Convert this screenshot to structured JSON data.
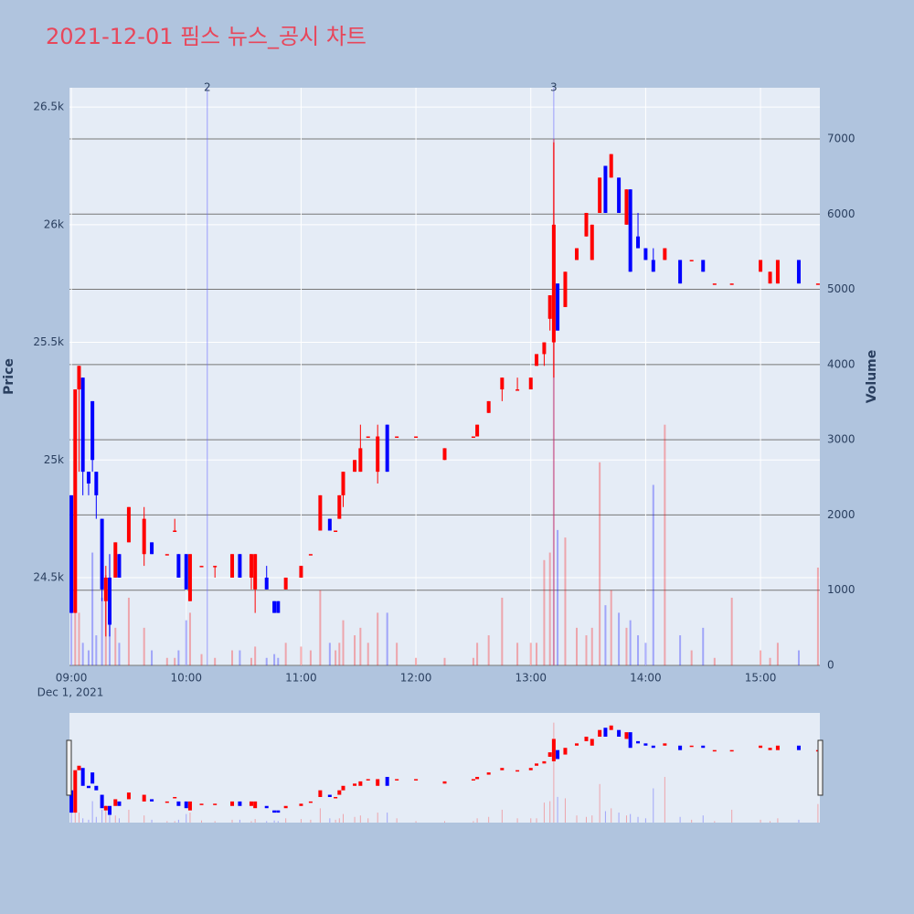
{
  "chart_data": {
    "type": "candlestick",
    "title": "2021-12-01 핌스 뉴스_공시 차트",
    "ylabel": "Price",
    "y2label": "Volume",
    "x_sublabel": "Dec 1, 2021",
    "increasing_color": "#ff0000",
    "decreasing_color": "#0000ff",
    "grid": true,
    "x": [
      "2021-12-01 09:00",
      "2021-12-01 09:02",
      "2021-12-01 09:04",
      "2021-12-01 09:06",
      "2021-12-01 09:09",
      "2021-12-01 09:11",
      "2021-12-01 09:13",
      "2021-12-01 09:16",
      "2021-12-01 09:18",
      "2021-12-01 09:20",
      "2021-12-01 09:23",
      "2021-12-01 09:25",
      "2021-12-01 09:30",
      "2021-12-01 09:38",
      "2021-12-01 09:42",
      "2021-12-01 09:50",
      "2021-12-01 09:54",
      "2021-12-01 09:56",
      "2021-12-01 10:00",
      "2021-12-01 10:02",
      "2021-12-01 10:08",
      "2021-12-01 10:15",
      "2021-12-01 10:24",
      "2021-12-01 10:28",
      "2021-12-01 10:34",
      "2021-12-01 10:36",
      "2021-12-01 10:42",
      "2021-12-01 10:46",
      "2021-12-01 10:48",
      "2021-12-01 10:52",
      "2021-12-01 11:00",
      "2021-12-01 11:05",
      "2021-12-01 11:10",
      "2021-12-01 11:15",
      "2021-12-01 11:18",
      "2021-12-01 11:20",
      "2021-12-01 11:22",
      "2021-12-01 11:28",
      "2021-12-01 11:31",
      "2021-12-01 11:35",
      "2021-12-01 11:40",
      "2021-12-01 11:45",
      "2021-12-01 11:50",
      "2021-12-01 12:00",
      "2021-12-01 12:15",
      "2021-12-01 12:30",
      "2021-12-01 12:32",
      "2021-12-01 12:38",
      "2021-12-01 12:45",
      "2021-12-01 12:53",
      "2021-12-01 13:00",
      "2021-12-01 13:03",
      "2021-12-01 13:07",
      "2021-12-01 13:10",
      "2021-12-01 13:12",
      "2021-12-01 13:14",
      "2021-12-01 13:18",
      "2021-12-01 13:24",
      "2021-12-01 13:29",
      "2021-12-01 13:32",
      "2021-12-01 13:36",
      "2021-12-01 13:39",
      "2021-12-01 13:42",
      "2021-12-01 13:46",
      "2021-12-01 13:50",
      "2021-12-01 13:52",
      "2021-12-01 13:56",
      "2021-12-01 14:00",
      "2021-12-01 14:04",
      "2021-12-01 14:10",
      "2021-12-01 14:18",
      "2021-12-01 14:24",
      "2021-12-01 14:30",
      "2021-12-01 14:36",
      "2021-12-01 14:45",
      "2021-12-01 15:00",
      "2021-12-01 15:05",
      "2021-12-01 15:09",
      "2021-12-01 15:20",
      "2021-12-01 15:30"
    ],
    "open": [
      24850,
      24350,
      25300,
      25350,
      24950,
      25250,
      24950,
      24750,
      24400,
      24500,
      24500,
      24600,
      24650,
      24600,
      24650,
      24600,
      24700,
      24600,
      24600,
      24400,
      24550,
      24550,
      24500,
      24600,
      24500,
      24450,
      24500,
      24400,
      24400,
      24450,
      24500,
      24600,
      24700,
      24750,
      24700,
      24750,
      24850,
      24950,
      24950,
      25100,
      24950,
      25150,
      25100,
      25100,
      25000,
      25100,
      25100,
      25200,
      25300,
      25300,
      25300,
      25400,
      25450,
      25600,
      25500,
      25750,
      25650,
      25850,
      25950,
      25850,
      26050,
      26250,
      26200,
      26200,
      26000,
      26150,
      25950,
      25900,
      25850,
      25850,
      25850,
      25850,
      25850,
      25750,
      25750,
      25800,
      25750,
      25750,
      25850,
      25750
    ],
    "high": [
      24850,
      25300,
      25400,
      25350,
      24950,
      25250,
      24950,
      24750,
      24550,
      24600,
      24650,
      24600,
      24800,
      24800,
      24650,
      24600,
      24750,
      24600,
      24600,
      24600,
      24550,
      24550,
      24600,
      24600,
      24600,
      24600,
      24550,
      24400,
      24400,
      24500,
      24550,
      24600,
      24850,
      24750,
      24700,
      24850,
      24950,
      25000,
      25150,
      25100,
      25150,
      25150,
      25100,
      25100,
      25050,
      25100,
      25150,
      25250,
      25350,
      25350,
      25350,
      25450,
      25500,
      25700,
      26350,
      25750,
      25800,
      25900,
      26050,
      26000,
      26200,
      26250,
      26300,
      26200,
      26150,
      26150,
      26050,
      25900,
      25900,
      25900,
      25850,
      25850,
      25850,
      25750,
      25750,
      25850,
      25800,
      25850,
      25850,
      25750
    ],
    "low": [
      24350,
      24350,
      24950,
      24850,
      24850,
      24950,
      24750,
      24400,
      24250,
      24250,
      24500,
      24500,
      24650,
      24550,
      24600,
      24600,
      24700,
      24500,
      24450,
      24400,
      24550,
      24500,
      24500,
      24500,
      24450,
      24350,
      24450,
      24350,
      24350,
      24450,
      24500,
      24600,
      24700,
      24700,
      24700,
      24750,
      24800,
      24950,
      24950,
      25100,
      24900,
      24950,
      25100,
      25100,
      25000,
      25100,
      25100,
      25200,
      25250,
      25300,
      25300,
      25400,
      25400,
      25550,
      25350,
      25550,
      25650,
      25850,
      25950,
      25850,
      26050,
      26050,
      26200,
      26050,
      26000,
      25800,
      25900,
      25850,
      25800,
      25850,
      25750,
      25850,
      25800,
      25750,
      25750,
      25800,
      25750,
      25750,
      25750,
      25750
    ],
    "close": [
      24350,
      25300,
      25400,
      24950,
      24900,
      25000,
      24850,
      24450,
      24500,
      24300,
      24650,
      24500,
      24800,
      24750,
      24600,
      24600,
      24700,
      24500,
      24450,
      24600,
      24550,
      24550,
      24600,
      24500,
      24600,
      24600,
      24450,
      24350,
      24350,
      24500,
      24550,
      24600,
      24850,
      24700,
      24700,
      24850,
      24950,
      25000,
      25050,
      25100,
      25100,
      24950,
      25100,
      25100,
      25050,
      25100,
      25150,
      25250,
      25350,
      25300,
      25350,
      25450,
      25500,
      25700,
      26000,
      25550,
      25800,
      25900,
      26050,
      26000,
      26200,
      26050,
      26300,
      26050,
      26150,
      25800,
      25900,
      25850,
      25800,
      25900,
      25750,
      25850,
      25800,
      25750,
      25750,
      25850,
      25800,
      25850,
      25750,
      25750
    ],
    "volume": [
      1300,
      1000,
      700,
      300,
      200,
      1500,
      400,
      900,
      1200,
      700,
      500,
      300,
      900,
      500,
      200,
      100,
      100,
      200,
      600,
      700,
      150,
      100,
      200,
      200,
      100,
      250,
      100,
      150,
      100,
      300,
      250,
      200,
      1000,
      300,
      200,
      300,
      600,
      400,
      500,
      300,
      700,
      700,
      300,
      100,
      100,
      100,
      300,
      400,
      900,
      300,
      300,
      300,
      1400,
      1500,
      7000,
      1800,
      1700,
      500,
      400,
      500,
      2700,
      800,
      1000,
      700,
      500,
      600,
      400,
      300,
      2400,
      3200,
      400,
      200,
      500,
      100,
      900,
      200,
      100,
      300,
      200,
      1300
    ],
    "ylim": [
      24127,
      26582
    ],
    "yticks": [
      {
        "value": 24500,
        "label": "24.5k"
      },
      {
        "value": 25000,
        "label": "25k"
      },
      {
        "value": 25500,
        "label": "25.5k"
      },
      {
        "value": 26000,
        "label": "26k"
      },
      {
        "value": 26500,
        "label": "26.5k"
      }
    ],
    "y2lim": [
      0,
      7680
    ],
    "y2ticks": [
      0,
      1000,
      2000,
      3000,
      4000,
      5000,
      6000,
      7000
    ],
    "xlim": [
      "2021-12-01 08:59",
      "2021-12-01 15:31"
    ],
    "xticks": [
      {
        "value": "2021-12-01 09:00",
        "label": "09:00"
      },
      {
        "value": "2021-12-01 10:00",
        "label": "10:00"
      },
      {
        "value": "2021-12-01 11:00",
        "label": "11:00"
      },
      {
        "value": "2021-12-01 12:00",
        "label": "12:00"
      },
      {
        "value": "2021-12-01 13:00",
        "label": "13:00"
      },
      {
        "value": "2021-12-01 14:00",
        "label": "14:00"
      },
      {
        "value": "2021-12-01 15:00",
        "label": "15:00"
      }
    ],
    "annotations": [
      {
        "x": "2021-12-01 10:11",
        "text": "2"
      },
      {
        "x": "2021-12-01 13:12",
        "text": "3"
      }
    ]
  }
}
